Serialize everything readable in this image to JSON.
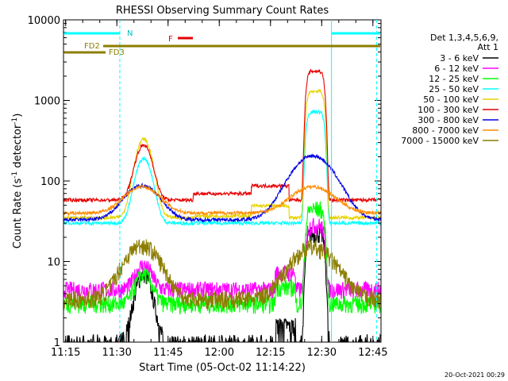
{
  "chart_data": {
    "type": "line",
    "title": "RHESSI Observing Summary Count Rates",
    "xlabel": "Start Time (05-Oct-02 11:14:22)",
    "ylabel_main": "Count Rate (s",
    "ylabel_sup1": "-1",
    "ylabel_mid": " detector",
    "ylabel_sup2": "-1",
    "ylabel_end": ")",
    "y_scale": "log",
    "ylim": [
      1,
      10000
    ],
    "xlim_minutes": [
      0,
      93
    ],
    "x_ticks": [
      {
        "m": 0.63,
        "label": "11:15"
      },
      {
        "m": 15.63,
        "label": "11:30"
      },
      {
        "m": 30.63,
        "label": "11:45"
      },
      {
        "m": 45.63,
        "label": "12:00"
      },
      {
        "m": 60.63,
        "label": "12:15"
      },
      {
        "m": 75.63,
        "label": "12:30"
      },
      {
        "m": 90.63,
        "label": "12:45"
      }
    ],
    "y_ticks": [
      {
        "v": 1,
        "label": "1"
      },
      {
        "v": 10,
        "label": "10"
      },
      {
        "v": 100,
        "label": "100"
      },
      {
        "v": 1000,
        "label": "1000"
      },
      {
        "v": 10000,
        "label": "10000"
      }
    ],
    "legend_title_1": "Det 1,3,4,5,6,9,",
    "legend_title_2": "Att 1",
    "legend_position": "right",
    "series": [
      {
        "name": "3 - 6 keV",
        "color": "#000000",
        "baseline": 1.0,
        "peak1": 7,
        "peak2": 22,
        "floor": true
      },
      {
        "name": "6 - 12 keV",
        "color": "#ff00ff",
        "baseline": 4.5,
        "peak1": 9,
        "peak2": 28
      },
      {
        "name": "12 - 25 keV",
        "color": "#00ff00",
        "baseline": 3.0,
        "peak1": 7,
        "peak2": 45
      },
      {
        "name": "25 - 50 keV",
        "color": "#00ffff",
        "baseline": 30,
        "peak1": 190,
        "peak2": 720
      },
      {
        "name": "50 - 100 keV",
        "color": "#e6d200",
        "baseline": 35,
        "peak1": 330,
        "peak2": 1300
      },
      {
        "name": "100 - 300 keV",
        "color": "#e60000",
        "baseline": 58,
        "peak1": 280,
        "peak2": 2300
      },
      {
        "name": "300 - 800 keV",
        "color": "#0000e6",
        "baseline": 33,
        "peak1": 88,
        "peak2": 205
      },
      {
        "name": "800 - 7000 keV",
        "color": "#ff8c00",
        "baseline": 40,
        "peak1": 85,
        "peak2": 85
      },
      {
        "name": "7000 - 15000 keV",
        "color": "#8c7d00",
        "baseline": 3.4,
        "peak1": 16,
        "peak2": 15
      }
    ],
    "annotations": {
      "night_label": "N",
      "flare_label": "F",
      "fd2_label": "FD2",
      "fd3_label": "FD3"
    },
    "timestamp": "20-Oct-2021 00:29"
  }
}
